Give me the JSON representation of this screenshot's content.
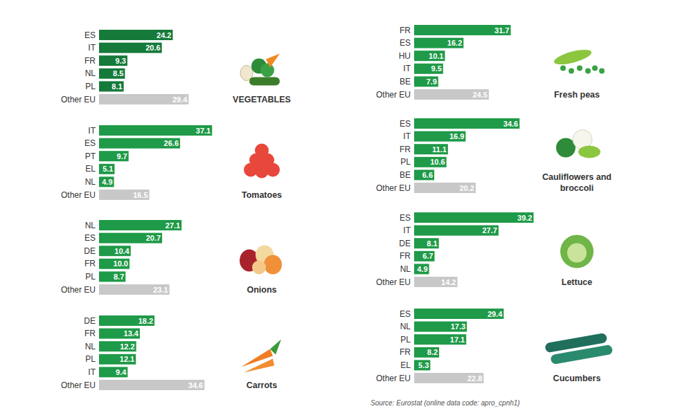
{
  "chart_data": [
    {
      "type": "bar",
      "orientation": "horizontal",
      "title": "VEGETABLES",
      "categories": [
        "ES",
        "IT",
        "FR",
        "NL",
        "PL",
        "Other EU"
      ],
      "values": [
        24.2,
        20.6,
        9.3,
        8.5,
        8.1,
        29.4
      ],
      "colors": [
        "#157a3a",
        "#157a3a",
        "#157a3a",
        "#157a3a",
        "#157a3a",
        "#c8c8c8"
      ],
      "xlim": [
        0,
        40
      ],
      "data_labels": true,
      "tick_labels": "y"
    },
    {
      "type": "bar",
      "orientation": "horizontal",
      "title": "Tomatoes",
      "categories": [
        "IT",
        "ES",
        "PT",
        "EL",
        "NL",
        "Other EU"
      ],
      "values": [
        37.1,
        26.6,
        9.7,
        5.1,
        4.9,
        16.5
      ],
      "colors": [
        "#1f9a48",
        "#1f9a48",
        "#1f9a48",
        "#1f9a48",
        "#1f9a48",
        "#c8c8c8"
      ],
      "xlim": [
        0,
        40
      ],
      "data_labels": true,
      "tick_labels": "y"
    },
    {
      "type": "bar",
      "orientation": "horizontal",
      "title": "Onions",
      "categories": [
        "NL",
        "ES",
        "DE",
        "FR",
        "PL",
        "Other EU"
      ],
      "values": [
        27.1,
        20.7,
        10.4,
        10,
        8.7,
        23.1
      ],
      "value_labels": [
        "27.1",
        "20.7",
        "10.4",
        "10.0",
        "8.7",
        "23.1"
      ],
      "colors": [
        "#1f9a48",
        "#1f9a48",
        "#1f9a48",
        "#1f9a48",
        "#1f9a48",
        "#c8c8c8"
      ],
      "xlim": [
        0,
        40
      ],
      "data_labels": true,
      "tick_labels": "y"
    },
    {
      "type": "bar",
      "orientation": "horizontal",
      "title": "Carrots",
      "categories": [
        "DE",
        "FR",
        "NL",
        "PL",
        "IT",
        "Other EU"
      ],
      "values": [
        18.2,
        13.4,
        12.2,
        12.1,
        9.4,
        34.6
      ],
      "colors": [
        "#1f9a48",
        "#1f9a48",
        "#1f9a48",
        "#1f9a48",
        "#1f9a48",
        "#c8c8c8"
      ],
      "xlim": [
        0,
        40
      ],
      "data_labels": true,
      "tick_labels": "y"
    },
    {
      "type": "bar",
      "orientation": "horizontal",
      "title": "Fresh peas",
      "categories": [
        "FR",
        "ES",
        "HU",
        "IT",
        "BE",
        "Other EU"
      ],
      "values": [
        31.7,
        16.2,
        10.1,
        9.5,
        7.9,
        24.5
      ],
      "colors": [
        "#1f9a48",
        "#1f9a48",
        "#1f9a48",
        "#1f9a48",
        "#1f9a48",
        "#c8c8c8"
      ],
      "xlim": [
        0,
        40
      ],
      "data_labels": true,
      "tick_labels": "y"
    },
    {
      "type": "bar",
      "orientation": "horizontal",
      "title": "Cauliflowers and broccoli",
      "categories": [
        "ES",
        "IT",
        "FR",
        "PL",
        "BE",
        "Other EU"
      ],
      "values": [
        34.6,
        16.9,
        11.1,
        10.6,
        6.6,
        20.2
      ],
      "colors": [
        "#1f9a48",
        "#1f9a48",
        "#1f9a48",
        "#1f9a48",
        "#1f9a48",
        "#c8c8c8"
      ],
      "xlim": [
        0,
        40
      ],
      "data_labels": true,
      "tick_labels": "y"
    },
    {
      "type": "bar",
      "orientation": "horizontal",
      "title": "Lettuce",
      "categories": [
        "ES",
        "IT",
        "DE",
        "FR",
        "NL",
        "Other EU"
      ],
      "values": [
        39.2,
        27.7,
        8.1,
        6.7,
        4.9,
        14.2
      ],
      "colors": [
        "#1f9a48",
        "#1f9a48",
        "#1f9a48",
        "#1f9a48",
        "#1f9a48",
        "#c8c8c8"
      ],
      "xlim": [
        0,
        40
      ],
      "data_labels": true,
      "tick_labels": "y"
    },
    {
      "type": "bar",
      "orientation": "horizontal",
      "title": "Cucumbers",
      "categories": [
        "ES",
        "NL",
        "PL",
        "FR",
        "EL",
        "Other EU"
      ],
      "values": [
        29.4,
        17.3,
        17.1,
        8.2,
        5.3,
        22.8
      ],
      "colors": [
        "#1f9a48",
        "#1f9a48",
        "#1f9a48",
        "#1f9a48",
        "#1f9a48",
        "#c8c8c8"
      ],
      "xlim": [
        0,
        40
      ],
      "data_labels": true,
      "tick_labels": "y"
    }
  ],
  "source": "Source: Eurostat (online data code: apro_cpnh1)"
}
